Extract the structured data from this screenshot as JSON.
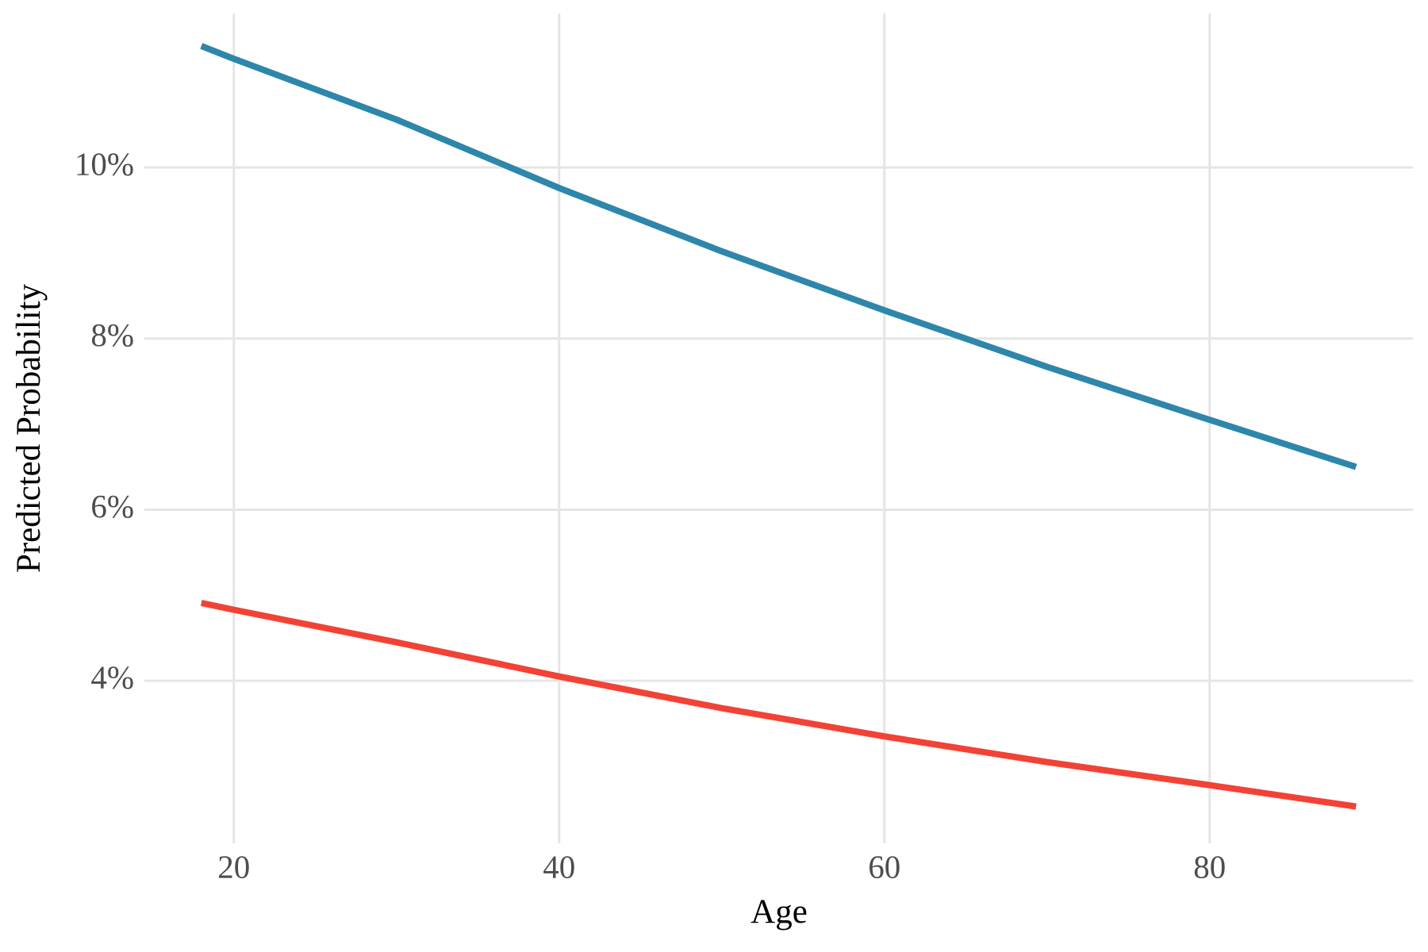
{
  "chart_data": {
    "type": "line",
    "x_label": "Age",
    "y_label": "Predicted Probability",
    "x": [
      18,
      20,
      30,
      40,
      50,
      60,
      70,
      80,
      89
    ],
    "series": [
      {
        "color": "#2e86ab",
        "values": [
          11.42,
          11.27,
          10.56,
          9.76,
          9.02,
          8.33,
          7.67,
          7.05,
          6.5
        ]
      },
      {
        "color": "#f24236",
        "values": [
          4.91,
          4.83,
          4.45,
          4.05,
          3.68,
          3.35,
          3.05,
          2.78,
          2.53
        ]
      }
    ],
    "xlim": [
      14.5,
      92.5
    ],
    "xticks": [
      20,
      40,
      60,
      80
    ],
    "ylim": [
      2.1,
      11.8
    ],
    "yticks": [
      {
        "value": 4,
        "label": "4%"
      },
      {
        "value": 6,
        "label": "6%"
      },
      {
        "value": 8,
        "label": "8%"
      },
      {
        "value": 10,
        "label": "10%"
      }
    ],
    "grid": true
  }
}
